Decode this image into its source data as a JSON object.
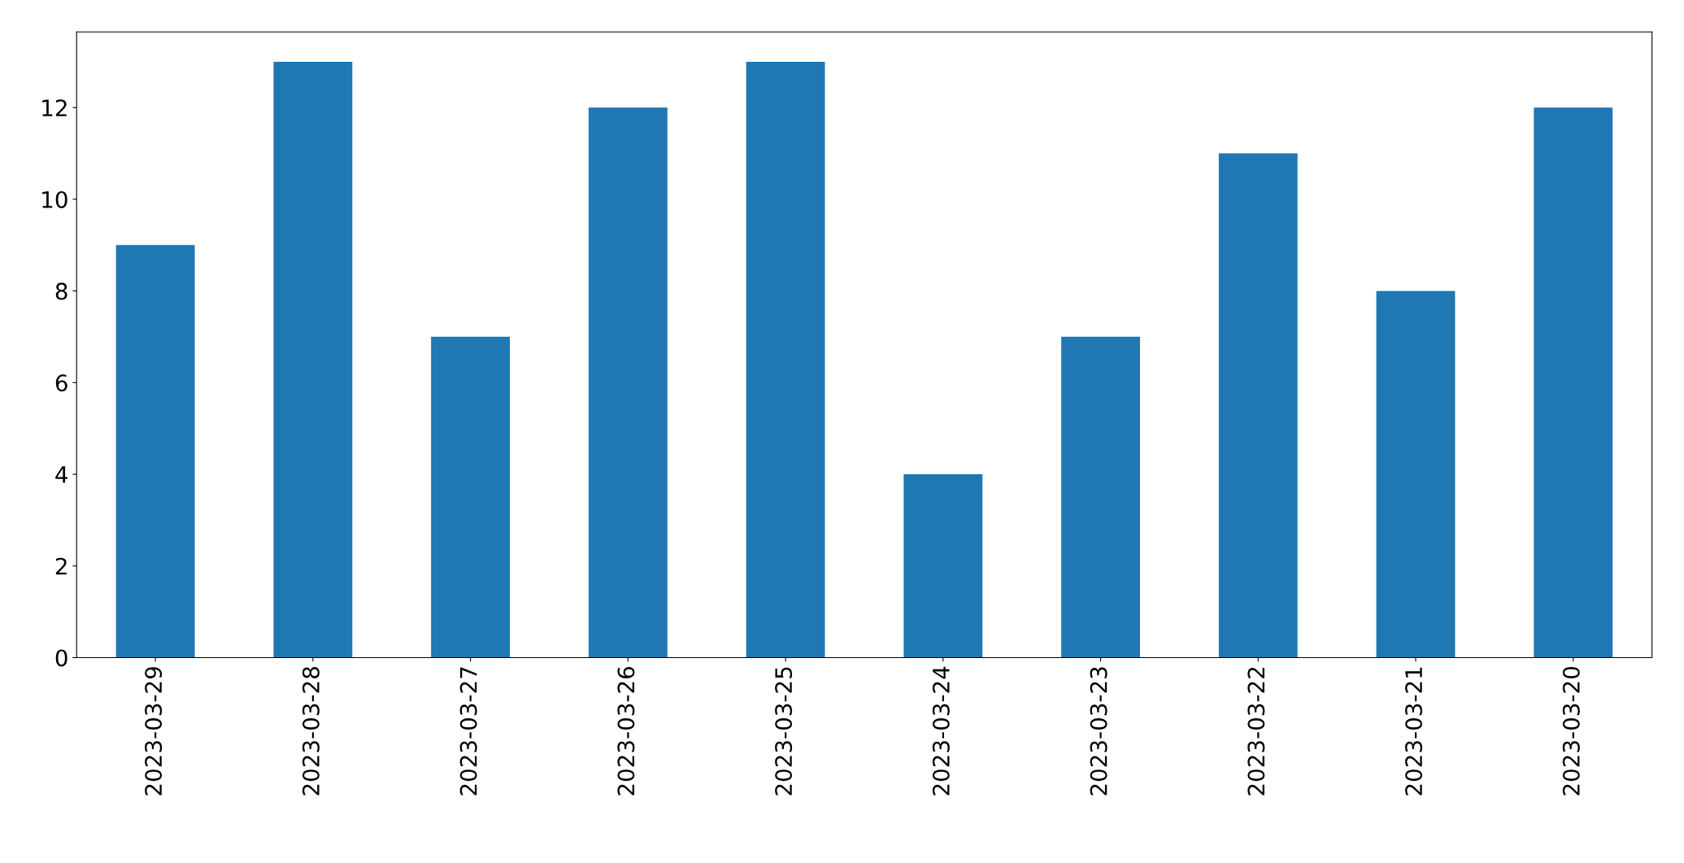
{
  "chart_data": {
    "type": "bar",
    "categories": [
      "2023-03-29",
      "2023-03-28",
      "2023-03-27",
      "2023-03-26",
      "2023-03-25",
      "2023-03-24",
      "2023-03-23",
      "2023-03-22",
      "2023-03-21",
      "2023-03-20"
    ],
    "values": [
      9,
      13,
      7,
      12,
      13,
      4,
      7,
      11,
      8,
      12
    ],
    "color": "#1f77b4",
    "ylim": [
      0,
      13.65
    ],
    "yticks": [
      0,
      2,
      4,
      6,
      8,
      10,
      12
    ],
    "grid": false,
    "legend": false
  }
}
